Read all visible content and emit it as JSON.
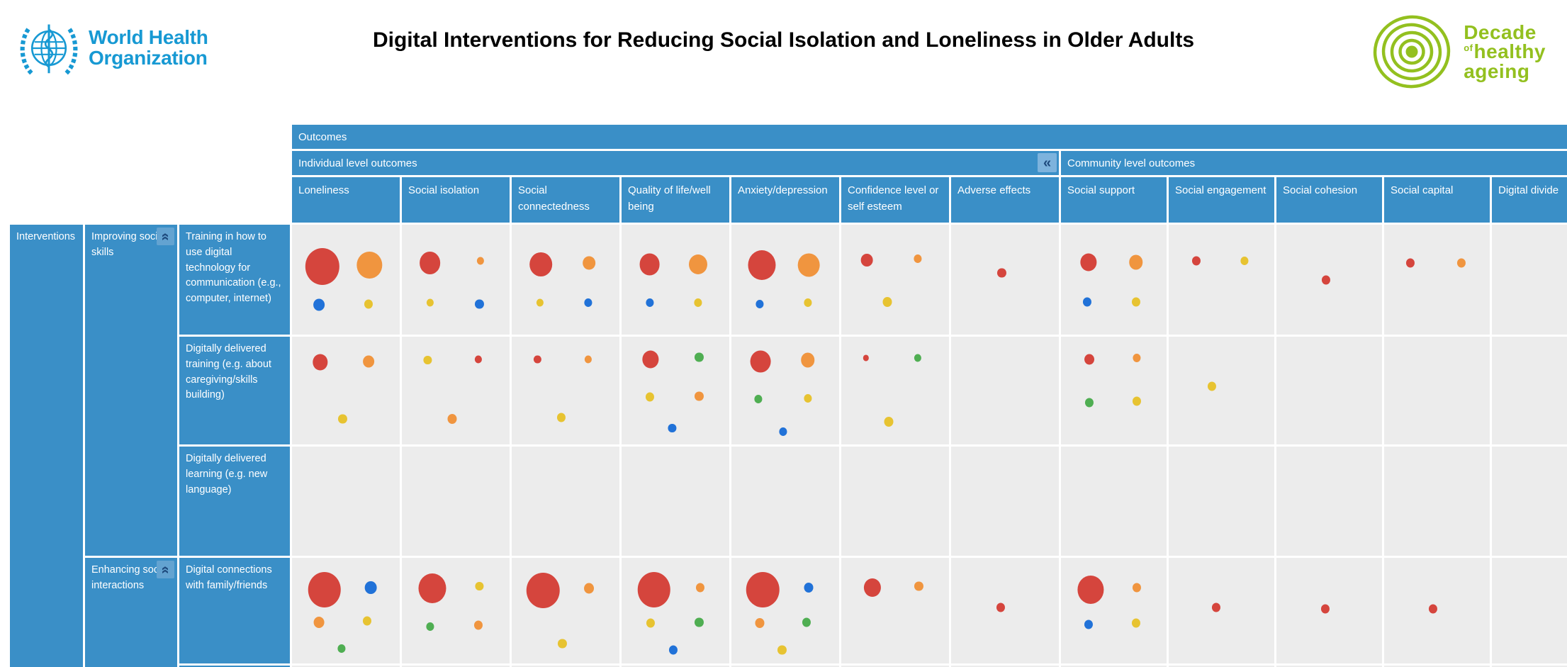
{
  "header": {
    "who": {
      "line1": "World Health",
      "line2": "Organization"
    },
    "title": "Digital Interventions for Reducing Social Isolation and Loneliness in Older Adults",
    "decade": {
      "word1": "Decade",
      "of": "of",
      "word2": "healthy",
      "word3": "ageing"
    }
  },
  "colors": {
    "header_blue": "#3a8fc7",
    "cell_gray": "#ececec",
    "who_blue": "#1799d3",
    "decade_green": "#93c01f",
    "collapse_bg": "#7db3dd",
    "collapse_glyph": "#1e4a7d",
    "bubble": {
      "r": "#d5453d",
      "o": "#f0953f",
      "y": "#e7c331",
      "b": "#2172d8",
      "g": "#4fae52"
    }
  },
  "matrix": {
    "outcomes_label": "Outcomes",
    "interventions_label": "Interventions",
    "collapse_left_glyph": "«",
    "collapse_up_glyph": "«"
  },
  "chart_data": {
    "type": "bubble-matrix",
    "title": "Digital Interventions for Reducing Social Isolation and Loneliness in Older Adults",
    "bubble_format": [
      "color_key",
      "diameter_px",
      "x_pct_of_cell",
      "y_pct_of_cell"
    ],
    "sections": [
      {
        "label": "Individual level outcomes",
        "span": 7
      },
      {
        "label": "Community level outcomes",
        "span": 5
      }
    ],
    "columns": [
      "Loneliness",
      "Social isolation",
      "Social connectedness",
      "Quality of life/well being",
      "Anxiety/depression",
      "Confidence level or self esteem",
      "Adverse effects",
      "Social support",
      "Social engagement",
      "Social cohesion",
      "Social capital",
      "Digital divide"
    ],
    "row_groups": [
      {
        "label": "Improving social skills",
        "rows": [
          {
            "label": "Training in how to use digital technology for communication (e.g., computer, internet)",
            "cells": [
              [
                [
                  "r",
                  52,
                  28,
                  38
                ],
                [
                  "o",
                  38,
                  72,
                  37
                ],
                [
                  "b",
                  17,
                  25,
                  73
                ],
                [
                  "y",
                  13,
                  71,
                  72
                ]
              ],
              [
                [
                  "r",
                  32,
                  26,
                  35
                ],
                [
                  "o",
                  11,
                  73,
                  33
                ],
                [
                  "y",
                  11,
                  26,
                  71
                ],
                [
                  "b",
                  13,
                  72,
                  72
                ]
              ],
              [
                [
                  "r",
                  34,
                  27,
                  36
                ],
                [
                  "o",
                  19,
                  72,
                  35
                ],
                [
                  "y",
                  11,
                  26,
                  71
                ],
                [
                  "b",
                  12,
                  71,
                  71
                ]
              ],
              [
                [
                  "r",
                  31,
                  26,
                  36
                ],
                [
                  "o",
                  28,
                  71,
                  36
                ],
                [
                  "b",
                  12,
                  26,
                  71
                ],
                [
                  "y",
                  12,
                  71,
                  71
                ]
              ],
              [
                [
                  "r",
                  42,
                  28,
                  37
                ],
                [
                  "o",
                  33,
                  72,
                  37
                ],
                [
                  "b",
                  12,
                  26,
                  72
                ],
                [
                  "y",
                  12,
                  71,
                  71
                ]
              ],
              [
                [
                  "r",
                  18,
                  24,
                  32
                ],
                [
                  "o",
                  12,
                  71,
                  31
                ],
                [
                  "y",
                  14,
                  43,
                  70
                ]
              ],
              [
                [
                  "r",
                  13,
                  47,
                  44
                ]
              ],
              [
                [
                  "r",
                  25,
                  26,
                  34
                ],
                [
                  "o",
                  21,
                  71,
                  34
                ],
                [
                  "b",
                  13,
                  25,
                  70
                ],
                [
                  "y",
                  13,
                  71,
                  70
                ]
              ],
              [
                [
                  "r",
                  13,
                  26,
                  33
                ],
                [
                  "y",
                  12,
                  72,
                  33
                ]
              ],
              [
                [
                  "r",
                  13,
                  47,
                  50
                ]
              ],
              [
                [
                  "r",
                  13,
                  25,
                  35
                ],
                [
                  "o",
                  13,
                  73,
                  35
                ]
              ],
              []
            ]
          },
          {
            "label": "Digitally delivered training (e.g. about caregiving/skills building)",
            "cells": [
              [
                [
                  "r",
                  23,
                  26,
                  24
                ],
                [
                  "o",
                  17,
                  71,
                  23
                ],
                [
                  "y",
                  13,
                  47,
                  76
                ]
              ],
              [
                [
                  "y",
                  12,
                  24,
                  22
                ],
                [
                  "r",
                  11,
                  71,
                  21
                ],
                [
                  "o",
                  14,
                  47,
                  76
                ]
              ],
              [
                [
                  "r",
                  11,
                  24,
                  21
                ],
                [
                  "o",
                  11,
                  71,
                  21
                ],
                [
                  "y",
                  13,
                  46,
                  75
                ]
              ],
              [
                [
                  "r",
                  25,
                  27,
                  21
                ],
                [
                  "g",
                  13,
                  72,
                  19
                ],
                [
                  "y",
                  13,
                  26,
                  56
                ],
                [
                  "o",
                  13,
                  72,
                  55
                ],
                [
                  "b",
                  12,
                  47,
                  85
                ]
              ],
              [
                [
                  "r",
                  31,
                  27,
                  23
                ],
                [
                  "o",
                  21,
                  71,
                  22
                ],
                [
                  "g",
                  12,
                  25,
                  58
                ],
                [
                  "y",
                  12,
                  71,
                  57
                ],
                [
                  "b",
                  12,
                  48,
                  88
                ]
              ],
              [
                [
                  "r",
                  9,
                  23,
                  20
                ],
                [
                  "g",
                  11,
                  71,
                  20
                ],
                [
                  "y",
                  14,
                  44,
                  79
                ]
              ],
              [],
              [
                [
                  "r",
                  15,
                  27,
                  21
                ],
                [
                  "o",
                  12,
                  72,
                  20
                ],
                [
                  "g",
                  13,
                  27,
                  61
                ],
                [
                  "y",
                  13,
                  72,
                  60
                ]
              ],
              [
                [
                  "y",
                  13,
                  41,
                  46
                ]
              ],
              [],
              [],
              []
            ]
          },
          {
            "label": "Digitally delivered learning (e.g. new language)",
            "cells": [
              [],
              [],
              [],
              [],
              [],
              [],
              [],
              [],
              [],
              [],
              [],
              []
            ]
          }
        ]
      },
      {
        "label": "Enhancing social interactions",
        "rows": [
          {
            "label": "Digital connections with family/friends",
            "cells": [
              [
                [
                  "r",
                  50,
                  30,
                  30
                ],
                [
                  "b",
                  18,
                  73,
                  28
                ],
                [
                  "o",
                  16,
                  25,
                  61
                ],
                [
                  "y",
                  13,
                  70,
                  60
                ],
                [
                  "g",
                  12,
                  46,
                  86
                ]
              ],
              [
                [
                  "r",
                  42,
                  28,
                  29
                ],
                [
                  "y",
                  12,
                  72,
                  27
                ],
                [
                  "g",
                  12,
                  26,
                  65
                ],
                [
                  "o",
                  13,
                  71,
                  64
                ]
              ],
              [
                [
                  "r",
                  50,
                  29,
                  31
                ],
                [
                  "o",
                  15,
                  72,
                  29
                ],
                [
                  "y",
                  13,
                  47,
                  81
                ]
              ],
              [
                [
                  "r",
                  50,
                  30,
                  30
                ],
                [
                  "o",
                  13,
                  73,
                  28
                ],
                [
                  "y",
                  13,
                  27,
                  62
                ],
                [
                  "g",
                  13,
                  72,
                  61
                ],
                [
                  "b",
                  13,
                  48,
                  87
                ]
              ],
              [
                [
                  "r",
                  50,
                  29,
                  30
                ],
                [
                  "b",
                  14,
                  72,
                  28
                ],
                [
                  "o",
                  14,
                  26,
                  62
                ],
                [
                  "g",
                  13,
                  70,
                  61
                ],
                [
                  "y",
                  13,
                  47,
                  87
                ]
              ],
              [
                [
                  "r",
                  26,
                  29,
                  28
                ],
                [
                  "o",
                  13,
                  72,
                  27
                ]
              ],
              [
                [
                  "r",
                  13,
                  46,
                  47
                ]
              ],
              [
                [
                  "r",
                  40,
                  28,
                  30
                ],
                [
                  "o",
                  13,
                  72,
                  28
                ],
                [
                  "b",
                  13,
                  26,
                  63
                ],
                [
                  "y",
                  13,
                  71,
                  62
                ]
              ],
              [
                [
                  "r",
                  13,
                  45,
                  47
                ]
              ],
              [
                [
                  "r",
                  13,
                  46,
                  48
                ]
              ],
              [
                [
                  "r",
                  13,
                  46,
                  48
                ]
              ],
              []
            ]
          },
          {
            "label": "",
            "cells": [
              [],
              [],
              [],
              [],
              [],
              [],
              [],
              [],
              [],
              [],
              [],
              []
            ]
          }
        ]
      }
    ]
  }
}
